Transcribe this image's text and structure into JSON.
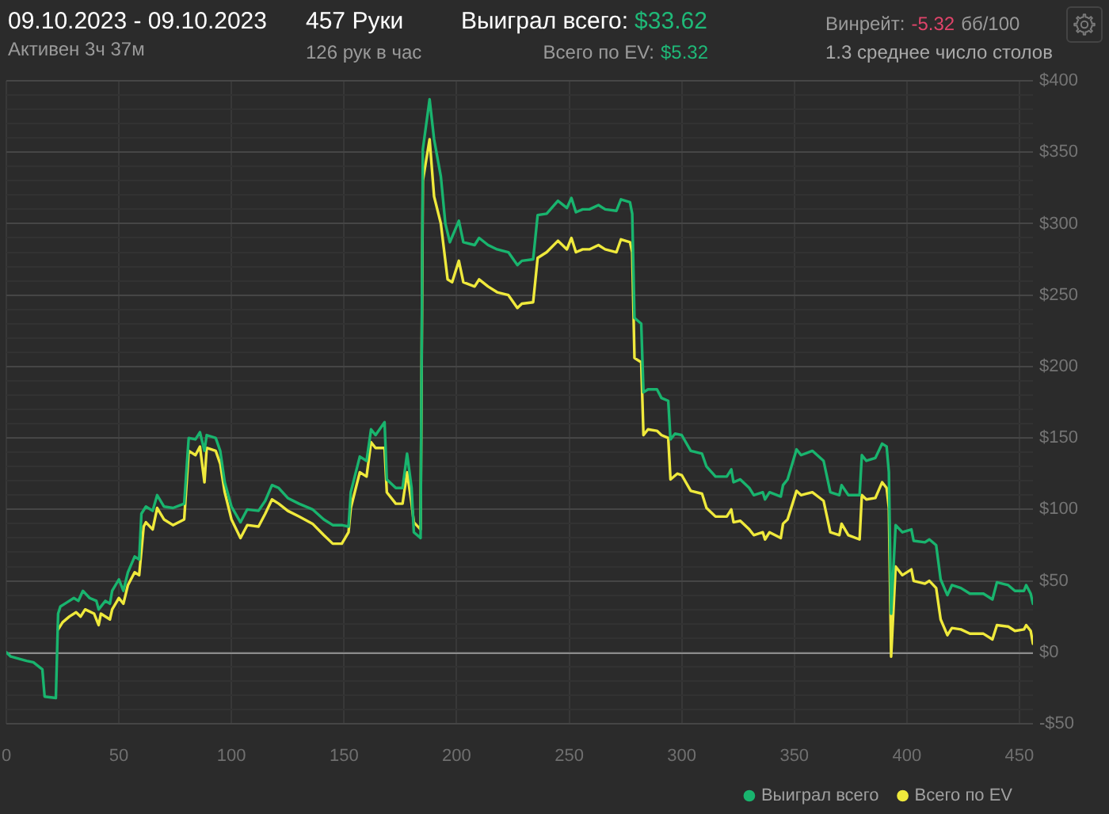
{
  "chart_data": {
    "type": "line",
    "title": "09.10.2023 - 09.10.2023",
    "subtitle": "Активен 3ч 37м",
    "annotations": [
      "457 Руки",
      "126 рук в час",
      "Выиграл всего:",
      "$33.62",
      "Всего по EV:",
      "$5.32",
      "Винрейт:",
      "-5.32",
      "бб/100",
      "1.3 среднее число столов"
    ],
    "series": [
      {
        "name": "Выиграл всего",
        "color": "#19b46e",
        "x": [
          0,
          2,
          9,
          12,
          16,
          17,
          22,
          23,
          24,
          27,
          30,
          32,
          34,
          37,
          40,
          41,
          44,
          46,
          47,
          50,
          52,
          54,
          57,
          59,
          60,
          62,
          65,
          67,
          70,
          74,
          79,
          81,
          84,
          86,
          88,
          89,
          93,
          95,
          97,
          100,
          104,
          107,
          112,
          115,
          118,
          121,
          125,
          130,
          136,
          141,
          145,
          149,
          152,
          153,
          157,
          160,
          162,
          164,
          168,
          169,
          173,
          176,
          178,
          180,
          181,
          184,
          185,
          188,
          190,
          193,
          195,
          197,
          201,
          203,
          208,
          210,
          214,
          218,
          223,
          227,
          229,
          234,
          236,
          240,
          245,
          249,
          251,
          253,
          256,
          259,
          263,
          266,
          271,
          273,
          277,
          278,
          279,
          282,
          283,
          285,
          289,
          291,
          294,
          295,
          297,
          300,
          304,
          309,
          311,
          315,
          320,
          322,
          323,
          326,
          330,
          332,
          336,
          337,
          339,
          344,
          345,
          347,
          351,
          353,
          358,
          363,
          366,
          370,
          371,
          374,
          379,
          380,
          382,
          386,
          389,
          391,
          392,
          393,
          395,
          398,
          402,
          403,
          408,
          410,
          413,
          415,
          418,
          420,
          424,
          428,
          434,
          438,
          440,
          445,
          448,
          452,
          453,
          455,
          456
        ],
        "values": [
          0,
          -3,
          -6,
          -7,
          -12,
          -31,
          -32,
          27,
          32,
          35,
          38,
          36,
          43,
          38,
          36,
          30,
          36,
          34,
          43,
          51,
          43,
          56,
          67,
          65,
          97,
          102,
          99,
          110,
          102,
          101,
          104,
          150,
          149,
          154,
          141,
          152,
          150,
          141,
          119,
          102,
          91,
          100,
          99,
          106,
          117,
          115,
          108,
          104,
          100,
          93,
          89,
          89,
          88,
          112,
          137,
          134,
          156,
          152,
          161,
          121,
          115,
          115,
          139,
          115,
          84,
          80,
          352,
          387,
          359,
          333,
          300,
          287,
          302,
          287,
          285,
          290,
          285,
          282,
          280,
          271,
          274,
          275,
          306,
          307,
          316,
          311,
          318,
          308,
          310,
          310,
          313,
          310,
          309,
          317,
          315,
          307,
          234,
          230,
          182,
          184,
          184,
          178,
          176,
          149,
          153,
          152,
          141,
          139,
          130,
          123,
          123,
          128,
          119,
          121,
          115,
          110,
          112,
          107,
          112,
          109,
          117,
          121,
          142,
          138,
          141,
          134,
          112,
          110,
          117,
          110,
          110,
          138,
          134,
          136,
          146,
          144,
          126,
          27,
          89,
          84,
          86,
          78,
          77,
          79,
          75,
          51,
          40,
          47,
          45,
          41,
          41,
          37,
          49,
          47,
          43,
          43,
          47,
          41,
          34
        ]
      },
      {
        "name": "Всего по EV",
        "color": "#efe93c",
        "x": [
          23,
          25,
          28,
          31,
          33,
          35,
          39,
          41,
          42,
          46,
          47,
          50,
          52,
          54,
          57,
          59,
          61,
          62,
          65,
          67,
          70,
          74,
          79,
          81,
          84,
          86,
          88,
          89,
          93,
          95,
          97,
          100,
          104,
          107,
          112,
          115,
          118,
          121,
          125,
          130,
          136,
          141,
          145,
          149,
          152,
          153,
          157,
          160,
          162,
          164,
          168,
          169,
          173,
          176,
          178,
          180,
          181,
          184,
          185,
          188,
          190,
          193,
          196,
          198,
          201,
          203,
          208,
          210,
          214,
          218,
          223,
          227,
          229,
          234,
          236,
          240,
          245,
          249,
          251,
          253,
          256,
          259,
          263,
          266,
          271,
          273,
          277,
          278,
          279,
          282,
          283,
          285,
          289,
          291,
          294,
          295,
          298,
          300,
          304,
          309,
          311,
          315,
          320,
          322,
          323,
          326,
          330,
          332,
          336,
          337,
          339,
          344,
          345,
          347,
          351,
          353,
          358,
          363,
          366,
          370,
          371,
          374,
          379,
          380,
          382,
          386,
          389,
          391,
          392,
          393,
          395,
          398,
          402,
          403,
          408,
          410,
          413,
          415,
          418,
          420,
          424,
          428,
          434,
          438,
          440,
          445,
          448,
          452,
          453,
          455,
          456
        ],
        "values": [
          16,
          21,
          25,
          28,
          25,
          30,
          27,
          19,
          27,
          23,
          30,
          38,
          34,
          47,
          56,
          54,
          88,
          91,
          86,
          101,
          93,
          89,
          93,
          141,
          138,
          144,
          119,
          143,
          141,
          132,
          112,
          93,
          80,
          89,
          88,
          97,
          107,
          104,
          99,
          95,
          90,
          82,
          76,
          76,
          84,
          101,
          126,
          123,
          147,
          143,
          143,
          112,
          104,
          104,
          126,
          104,
          91,
          86,
          330,
          359,
          319,
          300,
          261,
          259,
          274,
          259,
          256,
          261,
          256,
          252,
          250,
          241,
          244,
          245,
          276,
          280,
          288,
          282,
          290,
          280,
          282,
          282,
          285,
          282,
          280,
          289,
          287,
          280,
          206,
          203,
          152,
          156,
          155,
          152,
          150,
          121,
          125,
          124,
          113,
          111,
          101,
          95,
          95,
          100,
          91,
          92,
          86,
          82,
          84,
          79,
          84,
          80,
          90,
          93,
          113,
          110,
          112,
          106,
          84,
          82,
          90,
          82,
          79,
          110,
          107,
          108,
          119,
          115,
          101,
          -3,
          60,
          54,
          58,
          50,
          48,
          50,
          45,
          23,
          12,
          17,
          16,
          13,
          13,
          9,
          19,
          18,
          15,
          16,
          19,
          15,
          6
        ]
      }
    ],
    "xlim": [
      0,
      456
    ],
    "xticks": [
      0,
      50,
      100,
      150,
      200,
      250,
      300,
      350,
      400,
      450
    ],
    "ylim": [
      -50,
      400
    ],
    "yticks": [
      {
        "value": -50,
        "label": "-$50"
      },
      {
        "value": -40,
        "label": null
      },
      {
        "value": -30,
        "label": null
      },
      {
        "value": -20,
        "label": null
      },
      {
        "value": -10,
        "label": null
      },
      {
        "value": 0,
        "label": "$0"
      },
      {
        "value": 10,
        "label": null
      },
      {
        "value": 20,
        "label": null
      },
      {
        "value": 30,
        "label": null
      },
      {
        "value": 40,
        "label": null
      },
      {
        "value": 50,
        "label": "$50"
      },
      {
        "value": 60,
        "label": null
      },
      {
        "value": 70,
        "label": null
      },
      {
        "value": 80,
        "label": null
      },
      {
        "value": 90,
        "label": null
      },
      {
        "value": 100,
        "label": "$100"
      },
      {
        "value": 110,
        "label": null
      },
      {
        "value": 120,
        "label": null
      },
      {
        "value": 130,
        "label": null
      },
      {
        "value": 140,
        "label": null
      },
      {
        "value": 150,
        "label": "$150"
      },
      {
        "value": 160,
        "label": null
      },
      {
        "value": 170,
        "label": null
      },
      {
        "value": 180,
        "label": null
      },
      {
        "value": 190,
        "label": null
      },
      {
        "value": 200,
        "label": "$200"
      },
      {
        "value": 210,
        "label": null
      },
      {
        "value": 220,
        "label": null
      },
      {
        "value": 230,
        "label": null
      },
      {
        "value": 240,
        "label": null
      },
      {
        "value": 250,
        "label": "$250"
      },
      {
        "value": 260,
        "label": null
      },
      {
        "value": 270,
        "label": null
      },
      {
        "value": 280,
        "label": null
      },
      {
        "value": 290,
        "label": null
      },
      {
        "value": 300,
        "label": "$300"
      },
      {
        "value": 310,
        "label": null
      },
      {
        "value": 320,
        "label": null
      },
      {
        "value": 330,
        "label": null
      },
      {
        "value": 340,
        "label": null
      },
      {
        "value": 350,
        "label": "$350"
      },
      {
        "value": 360,
        "label": null
      },
      {
        "value": 370,
        "label": null
      },
      {
        "value": 380,
        "label": null
      },
      {
        "value": 390,
        "label": null
      },
      {
        "value": 400,
        "label": "$400"
      }
    ],
    "ref_lines": [
      {
        "axis": "y",
        "value": 0,
        "color": "#8c8c8c"
      }
    ],
    "grid": true,
    "legend": "bottom right",
    "line_style": "solid"
  }
}
